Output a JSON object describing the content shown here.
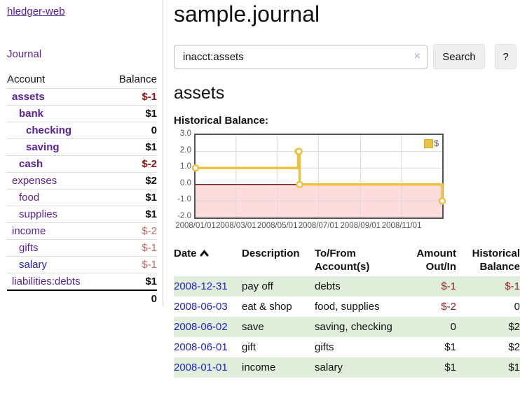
{
  "app": {
    "title": "hledger-web"
  },
  "sidebar": {
    "journal_link": "Journal",
    "account_table": {
      "col_account": "Account",
      "col_balance": "Balance",
      "rows": [
        {
          "account": "assets",
          "balance": "$-1"
        },
        {
          "account": "bank",
          "balance": "$1"
        },
        {
          "account": "checking",
          "balance": "0"
        },
        {
          "account": "saving",
          "balance": "$1"
        },
        {
          "account": "cash",
          "balance": "$-2"
        },
        {
          "account": "expenses",
          "balance": "$2"
        },
        {
          "account": "food",
          "balance": "$1"
        },
        {
          "account": "supplies",
          "balance": "$1"
        },
        {
          "account": "income",
          "balance": "$-2"
        },
        {
          "account": "gifts",
          "balance": "$-1"
        },
        {
          "account": "salary",
          "balance": "$-1"
        },
        {
          "account": "liabilities:debts",
          "balance": "$1"
        }
      ],
      "total": "0"
    }
  },
  "main": {
    "title": "sample.journal",
    "search": {
      "value": "inacct:assets",
      "clear_icon": "×",
      "search_button": "Search",
      "help_button": "?"
    },
    "account_heading": "assets",
    "chart_heading": "Historical Balance:"
  },
  "chart_data": {
    "type": "line",
    "title": "Historical Balance:",
    "legend": "$",
    "legend_position": "top-right",
    "step": true,
    "series": [
      {
        "name": "$",
        "points": [
          [
            "2008-01-01",
            1
          ],
          [
            "2008-06-01",
            2
          ],
          [
            "2008-06-02",
            2
          ],
          [
            "2008-06-03",
            0
          ],
          [
            "2008-12-31",
            -1
          ]
        ]
      }
    ],
    "xrange": [
      "2008-01-01",
      "2008-12-31"
    ],
    "ylim": [
      -2,
      3
    ],
    "y_ticks": [
      3,
      2,
      1,
      0,
      -1,
      -2
    ],
    "y_tick_labels": [
      "3.0",
      "2.0",
      "1.0",
      "0.0",
      "-1.0",
      "-2.0"
    ],
    "x_tick_labels": [
      "2008/01/01",
      "2008/03/01",
      "2008/05/01",
      "2008/07/01",
      "2008/09/01",
      "2008/11/01"
    ],
    "grid": true,
    "colors": {
      "line": "#edc240",
      "marker_fill": "#ffffff",
      "negative_fill": "#fcdcdc",
      "zero_line": "#7b1a1a",
      "gridline": "#d9d9d9",
      "border": "#545454"
    }
  },
  "register": {
    "headers": {
      "date": "Date",
      "description": "Description",
      "accounts": "To/From Account(s)",
      "amount": "Amount Out/In",
      "balance": "Historical Balance"
    },
    "rows": [
      {
        "date": "2008-12-31",
        "description": "pay off",
        "accounts": "debts",
        "amount": "$-1",
        "balance": "$-1"
      },
      {
        "date": "2008-06-03",
        "description": "eat & shop",
        "accounts": "food, supplies",
        "amount": "$-2",
        "balance": "0"
      },
      {
        "date": "2008-06-02",
        "description": "save",
        "accounts": "saving, checking",
        "amount": "0",
        "balance": "$2"
      },
      {
        "date": "2008-06-01",
        "description": "gift",
        "accounts": "gifts",
        "amount": "$1",
        "balance": "$2"
      },
      {
        "date": "2008-01-01",
        "description": "income",
        "accounts": "salary",
        "amount": "$1",
        "balance": "$1"
      }
    ]
  }
}
